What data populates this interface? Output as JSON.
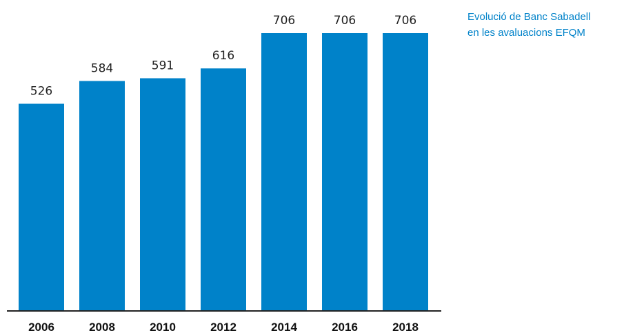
{
  "colors": {
    "bar": "#0082c9",
    "title": "#0082c9",
    "axis": "#222222"
  },
  "title_lines": [
    "Evolució de Banc Sabadell",
    "en les avaluacions EFQM"
  ],
  "chart_data": {
    "type": "bar",
    "categories": [
      "2006",
      "2008",
      "2010",
      "2012",
      "2014",
      "2016",
      "2018"
    ],
    "values": [
      526,
      584,
      591,
      616,
      706,
      706,
      706
    ],
    "data_labels": [
      "526",
      "584",
      "591",
      "616",
      "706",
      "706",
      "706"
    ],
    "title": "Evolució de Banc Sabadell en les avaluacions EFQM",
    "xlabel": "",
    "ylabel": "",
    "ylim": [
      0,
      706
    ],
    "grid": false,
    "legend": "none"
  }
}
